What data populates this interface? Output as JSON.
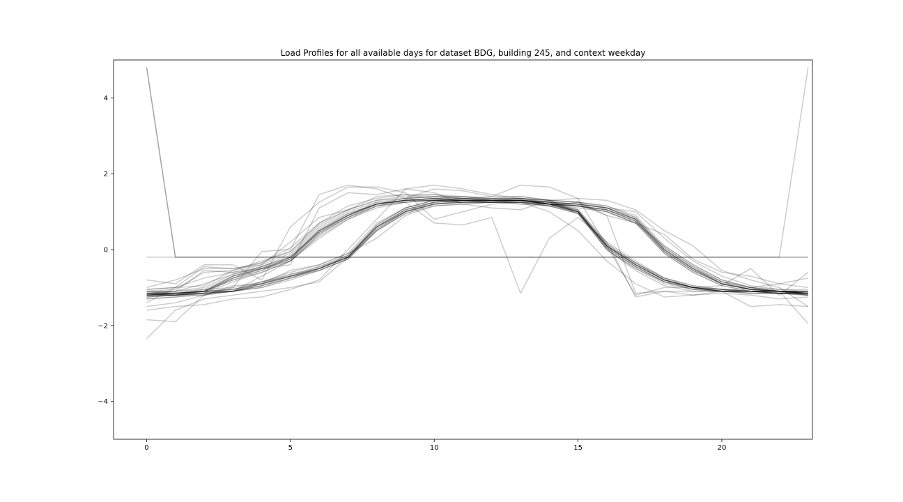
{
  "chart_data": {
    "type": "line",
    "title": "Load Profiles for all available days for dataset BDG, building 245, and context weekday",
    "xlabel": "",
    "ylabel": "",
    "xlim": [
      -1.15,
      23.15
    ],
    "ylim": [
      -5,
      5
    ],
    "xticks": [
      0,
      5,
      10,
      15,
      20
    ],
    "yticks": [
      -4,
      -2,
      0,
      2,
      4
    ],
    "grid": false,
    "legend": "none",
    "line_color": "#000000",
    "line_alpha": 0.2,
    "x": [
      0,
      1,
      2,
      3,
      4,
      5,
      6,
      7,
      8,
      9,
      10,
      11,
      12,
      13,
      14,
      15,
      16,
      17,
      18,
      19,
      20,
      21,
      22,
      23
    ],
    "series": [
      {
        "values": [
          -1.15,
          -1.15,
          -1.1,
          -0.7,
          -0.5,
          -0.2,
          0.5,
          0.9,
          1.2,
          1.3,
          1.35,
          1.3,
          1.3,
          1.3,
          1.2,
          1.0,
          0.1,
          -0.4,
          -0.8,
          -1.0,
          -1.1,
          -1.1,
          -1.15,
          -1.15
        ]
      },
      {
        "values": [
          -1.2,
          -1.15,
          -1.1,
          -0.8,
          -0.6,
          -0.3,
          0.4,
          0.85,
          1.15,
          1.3,
          1.3,
          1.3,
          1.25,
          1.3,
          1.2,
          1.05,
          0.15,
          -0.35,
          -0.75,
          -0.95,
          -1.05,
          -1.1,
          -1.1,
          -1.15
        ]
      },
      {
        "values": [
          -1.1,
          -1.1,
          -0.9,
          -0.65,
          -0.45,
          -0.15,
          0.55,
          0.95,
          1.2,
          1.35,
          1.4,
          1.35,
          1.3,
          1.35,
          1.25,
          1.0,
          0.05,
          -0.45,
          -0.85,
          -1.05,
          -1.1,
          -1.15,
          -1.15,
          -1.2
        ]
      },
      {
        "values": [
          -1.2,
          -1.2,
          -1.15,
          -0.75,
          -0.55,
          -0.25,
          0.45,
          0.9,
          1.25,
          1.25,
          1.3,
          1.25,
          1.25,
          1.25,
          1.15,
          0.95,
          0.1,
          -0.4,
          -0.8,
          -1.0,
          -1.1,
          -1.1,
          -1.1,
          -1.1
        ]
      },
      {
        "values": [
          -1.15,
          -1.1,
          -0.55,
          -0.6,
          -0.4,
          -0.1,
          0.6,
          1.0,
          1.25,
          1.35,
          1.4,
          1.4,
          1.35,
          1.35,
          1.2,
          0.95,
          0.0,
          -0.5,
          -0.9,
          -1.05,
          -1.1,
          -1.1,
          -1.15,
          -1.1
        ]
      },
      {
        "values": [
          -1.2,
          -1.15,
          -1.1,
          -0.7,
          -0.5,
          -0.25,
          0.5,
          0.9,
          1.2,
          1.3,
          1.3,
          1.3,
          1.3,
          1.3,
          1.2,
          1.0,
          0.1,
          -0.35,
          -0.8,
          -1.0,
          -1.05,
          -1.1,
          -1.15,
          -1.15
        ]
      },
      {
        "values": [
          -1.25,
          -1.2,
          -1.1,
          -0.8,
          -0.55,
          -0.2,
          0.45,
          0.85,
          1.2,
          1.3,
          1.35,
          1.3,
          1.3,
          1.3,
          1.2,
          1.05,
          0.2,
          -0.3,
          -0.75,
          -0.95,
          -1.05,
          -1.1,
          -1.1,
          -1.2
        ]
      },
      {
        "values": [
          -1.1,
          -1.05,
          -0.6,
          -0.55,
          -0.35,
          -0.05,
          0.65,
          1.05,
          1.3,
          1.4,
          1.45,
          1.4,
          1.35,
          1.4,
          1.3,
          1.0,
          0.0,
          -0.5,
          -0.85,
          -1.05,
          -1.1,
          -1.1,
          -1.1,
          -1.1
        ]
      },
      {
        "values": [
          -1.15,
          -1.15,
          -1.05,
          -0.7,
          -0.45,
          -0.2,
          0.5,
          0.95,
          1.2,
          1.3,
          1.35,
          1.35,
          1.3,
          1.3,
          1.2,
          1.0,
          0.1,
          -0.4,
          -0.8,
          -1.0,
          -1.1,
          -1.1,
          -1.15,
          -1.15
        ]
      },
      {
        "values": [
          -1.2,
          -1.2,
          -1.1,
          -0.75,
          -0.5,
          -0.3,
          0.4,
          0.85,
          1.15,
          1.25,
          1.3,
          1.25,
          1.25,
          1.25,
          1.15,
          1.0,
          0.15,
          -0.35,
          -0.75,
          -1.0,
          -1.05,
          -1.1,
          -1.1,
          -1.15
        ]
      },
      {
        "values": [
          -1.05,
          -1.0,
          -0.45,
          -0.5,
          -0.35,
          0.05,
          0.7,
          1.05,
          1.3,
          1.35,
          1.4,
          1.35,
          1.35,
          1.35,
          1.25,
          1.05,
          0.05,
          -0.45,
          -0.85,
          -1.0,
          -1.05,
          -1.1,
          -1.1,
          -1.1
        ]
      },
      {
        "values": [
          -1.3,
          -1.25,
          -1.15,
          -0.85,
          -0.6,
          -0.3,
          0.35,
          0.8,
          1.15,
          1.25,
          1.3,
          1.3,
          1.25,
          1.25,
          1.15,
          0.95,
          0.1,
          -0.4,
          -0.8,
          -1.0,
          -1.1,
          -1.15,
          -1.15,
          -1.2
        ]
      },
      {
        "values": [
          -1.15,
          -1.1,
          -1.0,
          -0.65,
          -0.45,
          -0.2,
          0.5,
          0.9,
          1.2,
          1.3,
          1.35,
          1.3,
          1.3,
          1.3,
          1.2,
          1.0,
          0.1,
          -0.4,
          -0.8,
          -1.0,
          -1.1,
          -1.1,
          -1.1,
          -1.15
        ]
      },
      {
        "values": [
          -1.2,
          -1.15,
          -1.1,
          -0.75,
          -0.5,
          -0.25,
          0.45,
          0.9,
          1.2,
          1.3,
          1.3,
          1.3,
          1.3,
          1.3,
          1.2,
          1.0,
          0.05,
          -0.45,
          -0.85,
          -1.0,
          -1.1,
          -1.1,
          -1.15,
          -1.15
        ]
      },
      {
        "values": [
          -1.15,
          -1.2,
          -1.15,
          -1.1,
          -0.9,
          -0.7,
          -0.5,
          -0.2,
          0.6,
          1.05,
          1.25,
          1.3,
          1.3,
          1.3,
          1.25,
          1.2,
          1.1,
          0.8,
          0.0,
          -0.5,
          -0.9,
          -1.05,
          -1.1,
          -1.15
        ]
      },
      {
        "values": [
          -1.2,
          -1.2,
          -1.15,
          -1.1,
          -0.95,
          -0.75,
          -0.55,
          -0.25,
          0.55,
          1.0,
          1.2,
          1.25,
          1.25,
          1.3,
          1.2,
          1.15,
          1.05,
          0.75,
          -0.05,
          -0.55,
          -0.9,
          -1.05,
          -1.1,
          -1.15
        ]
      },
      {
        "values": [
          -1.1,
          -1.15,
          -1.1,
          -1.05,
          -0.85,
          -0.65,
          -0.45,
          -0.15,
          0.65,
          1.1,
          1.3,
          1.35,
          1.3,
          1.35,
          1.3,
          1.25,
          1.15,
          0.85,
          0.05,
          -0.45,
          -0.85,
          -1.0,
          -1.1,
          -1.1
        ]
      },
      {
        "values": [
          -1.25,
          -1.2,
          -1.2,
          -1.1,
          -1.0,
          -0.75,
          -0.5,
          -0.2,
          0.6,
          1.0,
          1.2,
          1.25,
          1.25,
          1.25,
          1.2,
          1.15,
          1.0,
          0.7,
          -0.1,
          -0.6,
          -0.95,
          -1.1,
          -1.1,
          -1.2
        ]
      },
      {
        "values": [
          -1.15,
          -1.15,
          -1.1,
          -1.05,
          -0.9,
          -0.7,
          -0.5,
          -0.2,
          0.6,
          1.05,
          1.25,
          1.3,
          1.3,
          1.3,
          1.25,
          1.2,
          1.1,
          0.8,
          0.0,
          -0.5,
          -0.9,
          -1.05,
          -1.1,
          -1.15
        ]
      },
      {
        "values": [
          -1.2,
          -1.15,
          -1.15,
          -1.1,
          -0.95,
          -0.7,
          -0.55,
          -0.25,
          0.5,
          0.95,
          1.15,
          1.2,
          1.25,
          1.25,
          1.2,
          1.15,
          1.05,
          0.75,
          -0.05,
          -0.55,
          -0.9,
          -1.05,
          -1.1,
          -1.15
        ]
      },
      {
        "values": [
          -1.15,
          -1.2,
          -1.1,
          -1.1,
          -0.85,
          -0.7,
          -0.45,
          -0.2,
          0.65,
          1.1,
          1.3,
          1.3,
          1.3,
          1.3,
          1.25,
          1.2,
          1.1,
          0.8,
          0.0,
          -0.5,
          -0.85,
          -1.0,
          -1.1,
          -1.1
        ]
      },
      {
        "values": [
          -1.2,
          -1.2,
          -1.15,
          -1.1,
          -0.95,
          -0.75,
          -0.5,
          -0.2,
          0.55,
          1.0,
          1.25,
          1.3,
          1.3,
          1.3,
          1.25,
          1.15,
          1.05,
          0.75,
          -0.05,
          -0.55,
          -0.9,
          -1.05,
          -1.1,
          -1.15
        ]
      },
      {
        "values": [
          -1.15,
          -1.15,
          -1.1,
          -1.05,
          -0.9,
          -0.65,
          -0.5,
          -0.15,
          0.6,
          1.05,
          1.25,
          1.3,
          1.3,
          1.3,
          1.25,
          1.2,
          1.1,
          0.85,
          0.05,
          -0.45,
          -0.85,
          -1.05,
          -1.1,
          -1.1
        ]
      },
      {
        "values": [
          -1.25,
          -1.2,
          -1.15,
          -1.1,
          -1.0,
          -0.8,
          -0.55,
          -0.25,
          0.5,
          0.95,
          1.2,
          1.25,
          1.25,
          1.25,
          1.2,
          1.15,
          1.0,
          0.7,
          -0.1,
          -0.6,
          -0.95,
          -1.1,
          -1.15,
          -1.2
        ]
      },
      {
        "values": [
          -1.1,
          -1.1,
          -1.05,
          -1.0,
          -0.85,
          -0.6,
          -0.4,
          -0.1,
          0.7,
          1.1,
          1.3,
          1.35,
          1.35,
          1.35,
          1.3,
          1.25,
          1.15,
          0.9,
          0.1,
          -0.4,
          -0.8,
          -1.0,
          -1.05,
          -1.1
        ]
      },
      {
        "values": [
          -1.2,
          -1.15,
          -1.1,
          -1.1,
          -0.9,
          -0.7,
          -0.5,
          -0.2,
          0.6,
          1.0,
          1.2,
          1.3,
          1.25,
          1.3,
          1.2,
          1.15,
          1.05,
          0.8,
          0.0,
          -0.5,
          -0.9,
          -1.05,
          -1.1,
          -1.15
        ]
      },
      {
        "values": [
          4.8,
          -0.2,
          -0.2,
          -0.2,
          -0.2,
          -0.2,
          -0.2,
          -0.2,
          -0.2,
          -0.2,
          -0.2,
          -0.2,
          -0.2,
          -0.2,
          -0.2,
          -0.2,
          -0.2,
          -0.2,
          -0.2,
          -0.2,
          -0.2,
          -0.2,
          -0.2,
          -0.2
        ]
      },
      {
        "values": [
          4.8,
          -0.2,
          -0.2,
          -0.2,
          -0.2,
          -0.2,
          -0.2,
          -0.2,
          -0.2,
          -0.2,
          -0.2,
          -0.2,
          -0.2,
          -0.2,
          -0.2,
          -0.2,
          -0.2,
          -0.2,
          -0.2,
          -0.2,
          -0.2,
          -0.2,
          -0.2,
          -0.2
        ]
      },
      {
        "values": [
          -0.2,
          -0.2,
          -0.2,
          -0.2,
          -0.2,
          -0.2,
          -0.2,
          -0.2,
          -0.2,
          -0.2,
          -0.2,
          -0.2,
          -0.2,
          -0.2,
          -0.2,
          -0.2,
          -0.2,
          -0.2,
          -0.2,
          -0.2,
          -0.2,
          -0.2,
          -0.2,
          4.8
        ]
      },
      {
        "values": [
          -2.35,
          -1.6,
          -1.3,
          -1.2,
          -1.1,
          -1.0,
          -0.85,
          -0.2,
          0.5,
          1.0,
          1.2,
          1.25,
          1.3,
          1.3,
          1.2,
          1.1,
          1.0,
          0.7,
          0.1,
          -0.4,
          -0.8,
          -1.0,
          -1.1,
          -1.95
        ]
      },
      {
        "values": [
          -1.85,
          -1.9,
          -1.2,
          -1.1,
          -0.7,
          -0.3,
          0.3,
          0.8,
          1.1,
          1.25,
          0.7,
          0.65,
          0.85,
          -1.15,
          0.3,
          0.85,
          0.2,
          -1.25,
          -1.1,
          -1.1,
          -1.1,
          -1.5,
          -1.45,
          -1.5
        ]
      },
      {
        "values": [
          -1.5,
          -1.4,
          -1.2,
          -1.0,
          -0.05,
          0.0,
          1.45,
          1.7,
          1.6,
          1.35,
          1.6,
          1.55,
          1.4,
          1.7,
          1.65,
          1.35,
          0.1,
          -1.2,
          -1.0,
          -1.0,
          -0.95,
          -0.5,
          -1.2,
          -0.6
        ]
      },
      {
        "values": [
          -0.8,
          -0.9,
          -0.4,
          -0.4,
          -0.8,
          0.6,
          1.25,
          1.65,
          1.65,
          1.5,
          0.8,
          1.0,
          1.2,
          1.25,
          1.0,
          0.5,
          -0.3,
          -0.9,
          -1.25,
          -1.2,
          -1.1,
          -1.0,
          -0.9,
          -0.75
        ]
      },
      {
        "values": [
          -1.6,
          -1.5,
          -1.45,
          -1.3,
          -1.25,
          -1.05,
          -0.8,
          0.0,
          0.8,
          1.6,
          1.5,
          1.2,
          1.1,
          1.05,
          1.3,
          1.35,
          1.3,
          1.05,
          0.5,
          0.1,
          -0.55,
          -0.8,
          -1.0,
          -1.5
        ]
      },
      {
        "values": [
          -1.4,
          -1.0,
          -0.75,
          -0.6,
          -0.5,
          -0.4,
          1.1,
          1.5,
          1.45,
          1.6,
          1.7,
          1.6,
          1.45,
          1.35,
          1.3,
          1.25,
          0.9,
          0.7,
          0.4,
          -0.25,
          -0.6,
          -0.7,
          -0.9,
          -1.0
        ]
      },
      {
        "values": [
          -1.0,
          -0.8,
          -0.5,
          -0.5,
          -0.4,
          0.2,
          0.85,
          1.05,
          1.4,
          1.45,
          1.35,
          1.4,
          1.3,
          1.2,
          1.2,
          1.2,
          0.9,
          -1.15,
          -1.1,
          -1.2,
          -1.15,
          -1.2,
          -1.3,
          -1.25
        ]
      },
      {
        "values": [
          -1.3,
          -1.25,
          -1.2,
          -0.95,
          -0.9,
          -0.55,
          -0.4,
          -0.1,
          0.3,
          0.9,
          1.15,
          1.2,
          1.25,
          1.2,
          1.15,
          1.25,
          1.1,
          1.0,
          0.3,
          -0.3,
          -0.7,
          -0.95,
          -1.05,
          -1.05
        ]
      },
      {
        "values": [
          -1.05,
          -1.0,
          -0.95,
          -0.55,
          -0.3,
          -0.05,
          0.7,
          1.15,
          1.35,
          1.45,
          1.45,
          1.35,
          1.4,
          1.4,
          1.3,
          0.95,
          0.0,
          -0.55,
          -0.95,
          -1.1,
          -1.1,
          -1.15,
          -1.15,
          -1.15
        ]
      }
    ]
  }
}
